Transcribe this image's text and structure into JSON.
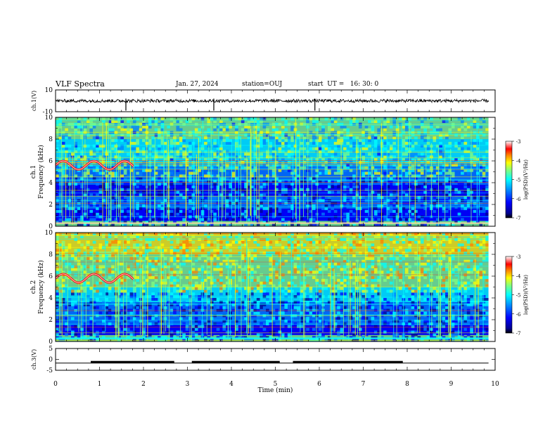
{
  "header": {
    "title": "VLF Spectra",
    "date": "Jan. 27, 2024",
    "station": "station=OUJ",
    "start": "start  UT =   16: 30: 0"
  },
  "chart_data": [
    {
      "type": "line",
      "panel": "ch1-waveform",
      "ylabel": "ch.1(V)",
      "ylim": [
        -10,
        10
      ],
      "yticks": [
        "10",
        "-10"
      ],
      "description_values": {
        "baseline": 0,
        "spikes_min": [
          1.6,
          3.6,
          5.9
        ]
      }
    },
    {
      "type": "heatmap",
      "panel": "ch1-spectrogram",
      "ylabel": [
        "ch.1",
        "Frequency (kHz)"
      ],
      "ylim": [
        0,
        10
      ],
      "yticks": [
        "0",
        "2",
        "4",
        "6",
        "8",
        "10"
      ],
      "colorbar": {
        "label": "log(PSD)(V²/Hz)",
        "range": [
          -7,
          -3
        ],
        "ticks": [
          "-3",
          "-4",
          "-5",
          "-6",
          "-7"
        ]
      }
    },
    {
      "type": "heatmap",
      "panel": "ch2-spectrogram",
      "ylabel": [
        "ch.2",
        "Frequency (kHz)"
      ],
      "ylim": [
        0,
        10
      ],
      "yticks": [
        "0",
        "2",
        "4",
        "6",
        "8",
        "10"
      ],
      "colorbar": {
        "label": "log(PSD)(V²/Hz)",
        "range": [
          -7,
          -3
        ],
        "ticks": [
          "-3",
          "-4",
          "-5",
          "-6",
          "-7"
        ]
      }
    },
    {
      "type": "line",
      "panel": "ch3-level",
      "ylabel": "ch.3(V)",
      "ylim": [
        -5,
        5
      ],
      "yticks": [
        "5",
        "0",
        "-5"
      ],
      "high_intervals_min": [
        [
          0.8,
          2.7
        ],
        [
          3.1,
          5.1
        ],
        [
          5.4,
          7.9
        ]
      ],
      "level_low": -1.7,
      "level_high": -1.2
    }
  ],
  "xaxis": {
    "label": "Time  (min)",
    "range": [
      0,
      10
    ],
    "ticks": [
      "0",
      "1",
      "2",
      "3",
      "4",
      "5",
      "6",
      "7",
      "8",
      "9",
      "10"
    ]
  },
  "colors": {
    "waveform": "#000000",
    "colormap": [
      "#00008f",
      "#0000ff",
      "#0080ff",
      "#00ffff",
      "#80ff80",
      "#ffff00",
      "#ff8000",
      "#ff0000",
      "#800000"
    ]
  }
}
